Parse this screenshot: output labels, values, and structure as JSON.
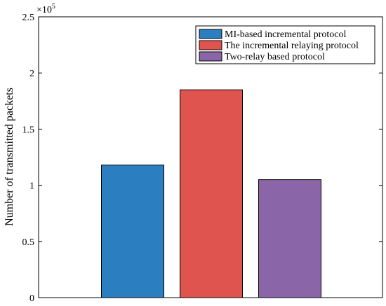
{
  "chart_data": {
    "type": "bar",
    "title": "",
    "xlabel": "",
    "ylabel": "Number of transmitted packets",
    "y_exponent_label": "×10",
    "y_exponent_power": "5",
    "ylim": [
      0,
      2.5
    ],
    "yticks": [
      0,
      0.5,
      1,
      1.5,
      2,
      2.5
    ],
    "ytick_labels": [
      "0",
      "0.5",
      "1",
      "1.5",
      "2",
      "2.5"
    ],
    "y_multiplier": 100000,
    "grid": false,
    "legend_position": "top-right",
    "series": [
      {
        "name": "MI-based incremental protocol",
        "value": 1.18,
        "color": "#2b7fc1"
      },
      {
        "name": "The incremental relaying protocol",
        "value": 1.85,
        "color": "#e05450"
      },
      {
        "name": "Two-relay based protocol",
        "value": 1.05,
        "color": "#8a65a8"
      }
    ]
  }
}
